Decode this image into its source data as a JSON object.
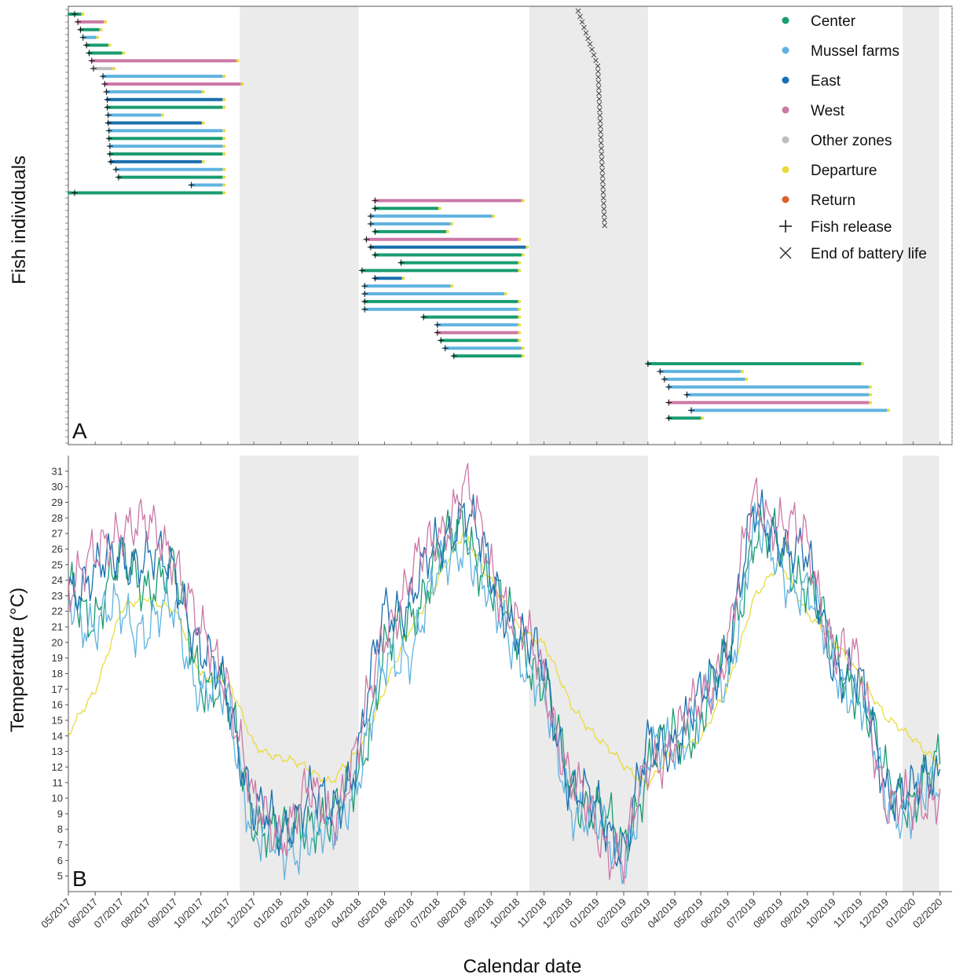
{
  "chart_data": [
    {
      "type": "scatter",
      "panel_label": "A",
      "ylabel": "Fish individuals",
      "x_range": [
        "2017-05-01",
        "2020-02-15"
      ],
      "shaded_periods": [
        [
          "2017-11-15",
          "2018-04-01"
        ],
        [
          "2018-10-15",
          "2019-03-01"
        ],
        [
          "2019-12-20",
          "2020-01-31"
        ]
      ],
      "legend": {
        "placement": "top-right",
        "entries": [
          {
            "label": "Center",
            "color": "#1a9c72",
            "marker": "dot"
          },
          {
            "label": "Mussel farms",
            "color": "#5fb3e0",
            "marker": "dot"
          },
          {
            "label": "East",
            "color": "#1a6fae",
            "marker": "dot"
          },
          {
            "label": "West",
            "color": "#cc79a7",
            "marker": "dot"
          },
          {
            "label": "Other zones",
            "color": "#bdbdbd",
            "marker": "dot"
          },
          {
            "label": "Departure",
            "color": "#e8dc3a",
            "marker": "dot"
          },
          {
            "label": "Return",
            "color": "#d9622b",
            "marker": "dot"
          },
          {
            "label": "Fish release",
            "color": "#111111",
            "marker": "plus"
          },
          {
            "label": "End of battery life",
            "color": "#333333",
            "marker": "cross"
          }
        ]
      },
      "tracks": [
        {
          "start": "2017-05-01",
          "end": "2017-05-15",
          "color": "#1a9c72"
        },
        {
          "start": "2017-05-12",
          "end": "2017-06-10",
          "color": "#cc79a7"
        },
        {
          "start": "2017-05-15",
          "end": "2017-06-05",
          "color": "#1a9c72"
        },
        {
          "start": "2017-05-18",
          "end": "2017-06-01",
          "color": "#5fb3e0"
        },
        {
          "start": "2017-05-22",
          "end": "2017-06-15",
          "color": "#1a9c72"
        },
        {
          "start": "2017-05-25",
          "end": "2017-07-01",
          "color": "#1a9c72"
        },
        {
          "start": "2017-05-28",
          "end": "2017-11-10",
          "color": "#cc79a7"
        },
        {
          "start": "2017-05-30",
          "end": "2017-06-20",
          "color": "#bdbdbd"
        },
        {
          "start": "2017-06-10",
          "end": "2017-10-25",
          "color": "#5fb3e0"
        },
        {
          "start": "2017-06-12",
          "end": "2017-11-15",
          "color": "#cc79a7"
        },
        {
          "start": "2017-06-14",
          "end": "2017-10-01",
          "color": "#5fb3e0"
        },
        {
          "start": "2017-06-15",
          "end": "2017-10-25",
          "color": "#1a6fae"
        },
        {
          "start": "2017-06-15",
          "end": "2017-10-25",
          "color": "#1a9c72"
        },
        {
          "start": "2017-06-16",
          "end": "2017-08-15",
          "color": "#5fb3e0"
        },
        {
          "start": "2017-06-16",
          "end": "2017-10-01",
          "color": "#1a6fae"
        },
        {
          "start": "2017-06-17",
          "end": "2017-10-25",
          "color": "#5fb3e0"
        },
        {
          "start": "2017-06-17",
          "end": "2017-10-25",
          "color": "#1a9c72"
        },
        {
          "start": "2017-06-18",
          "end": "2017-10-25",
          "color": "#5fb3e0"
        },
        {
          "start": "2017-06-18",
          "end": "2017-10-25",
          "color": "#1a9c72"
        },
        {
          "start": "2017-06-19",
          "end": "2017-10-01",
          "color": "#1a6fae"
        },
        {
          "start": "2017-06-25",
          "end": "2017-10-25",
          "color": "#5fb3e0"
        },
        {
          "start": "2017-06-28",
          "end": "2017-10-25",
          "color": "#1a9c72"
        },
        {
          "start": "2017-09-20",
          "end": "2017-10-25",
          "color": "#5fb3e0"
        },
        {
          "start": "2017-04-01",
          "end": "2017-10-25",
          "color": "#1a9c72"
        },
        {
          "start": "2018-04-20",
          "end": "2018-10-05",
          "color": "#cc79a7"
        },
        {
          "start": "2018-04-20",
          "end": "2018-07-01",
          "color": "#1a9c72"
        },
        {
          "start": "2018-04-15",
          "end": "2018-09-01",
          "color": "#5fb3e0"
        },
        {
          "start": "2018-04-15",
          "end": "2018-07-15",
          "color": "#5fb3e0"
        },
        {
          "start": "2018-04-20",
          "end": "2018-07-10",
          "color": "#1a9c72"
        },
        {
          "start": "2018-04-10",
          "end": "2018-10-01",
          "color": "#cc79a7"
        },
        {
          "start": "2018-04-15",
          "end": "2018-10-10",
          "color": "#1a6fae"
        },
        {
          "start": "2018-04-20",
          "end": "2018-10-05",
          "color": "#1a9c72"
        },
        {
          "start": "2018-05-20",
          "end": "2018-10-01",
          "color": "#1a9c72"
        },
        {
          "start": "2018-04-05",
          "end": "2018-10-01",
          "color": "#1a9c72"
        },
        {
          "start": "2018-04-20",
          "end": "2018-05-20",
          "color": "#1a6fae"
        },
        {
          "start": "2018-04-08",
          "end": "2018-07-15",
          "color": "#5fb3e0"
        },
        {
          "start": "2018-04-08",
          "end": "2018-09-15",
          "color": "#5fb3e0"
        },
        {
          "start": "2018-04-08",
          "end": "2018-10-01",
          "color": "#1a9c72"
        },
        {
          "start": "2018-04-08",
          "end": "2018-10-01",
          "color": "#5fb3e0"
        },
        {
          "start": "2018-06-15",
          "end": "2018-10-01",
          "color": "#1a9c72"
        },
        {
          "start": "2018-07-01",
          "end": "2018-10-01",
          "color": "#5fb3e0"
        },
        {
          "start": "2018-07-01",
          "end": "2018-10-01",
          "color": "#cc79a7"
        },
        {
          "start": "2018-07-05",
          "end": "2018-10-01",
          "color": "#1a9c72"
        },
        {
          "start": "2018-07-10",
          "end": "2018-10-05",
          "color": "#5fb3e0"
        },
        {
          "start": "2018-07-20",
          "end": "2018-10-05",
          "color": "#1a9c72"
        },
        {
          "start": "2019-03-01",
          "end": "2019-11-01",
          "color": "#1a9c72"
        },
        {
          "start": "2019-03-15",
          "end": "2019-06-15",
          "color": "#5fb3e0"
        },
        {
          "start": "2019-03-20",
          "end": "2019-06-20",
          "color": "#5fb3e0"
        },
        {
          "start": "2019-03-25",
          "end": "2019-11-10",
          "color": "#5fb3e0"
        },
        {
          "start": "2019-04-15",
          "end": "2019-11-10",
          "color": "#5fb3e0"
        },
        {
          "start": "2019-03-25",
          "end": "2019-11-10",
          "color": "#cc79a7"
        },
        {
          "start": "2019-04-20",
          "end": "2019-12-01",
          "color": "#5fb3e0"
        },
        {
          "start": "2019-03-25",
          "end": "2019-04-30",
          "color": "#1a9c72"
        }
      ]
    },
    {
      "type": "line",
      "panel_label": "B",
      "ylabel": "Temperature (°C)",
      "xlabel": "Calendar date",
      "ylim": [
        4,
        32
      ],
      "yticks": [
        5,
        6,
        7,
        8,
        9,
        10,
        11,
        12,
        13,
        14,
        15,
        16,
        17,
        18,
        19,
        20,
        21,
        22,
        23,
        24,
        25,
        26,
        27,
        28,
        29,
        30,
        31
      ],
      "x_range": [
        "2017-05-01",
        "2020-02-15"
      ],
      "xticks": [
        "05/2017",
        "06/2017",
        "07/2017",
        "08/2017",
        "09/2017",
        "10/2017",
        "11/2017",
        "12/2017",
        "01/2018",
        "02/2018",
        "03/2018",
        "04/2018",
        "05/2018",
        "06/2018",
        "07/2018",
        "08/2018",
        "09/2018",
        "10/2018",
        "11/2018",
        "12/2018",
        "01/2019",
        "02/2019",
        "03/2019",
        "04/2019",
        "05/2019",
        "06/2019",
        "07/2019",
        "08/2019",
        "09/2019",
        "10/2019",
        "11/2019",
        "12/2019",
        "01/2020",
        "02/2020"
      ],
      "shaded_periods": [
        [
          "2017-11-15",
          "2018-04-01"
        ],
        [
          "2018-10-15",
          "2019-03-01"
        ],
        [
          "2019-12-20",
          "2020-01-31"
        ]
      ],
      "series": [
        {
          "color": "#e8dc3a",
          "x": [
            "2017-05-01",
            "2017-06-01",
            "2017-07-01",
            "2017-08-01",
            "2017-09-01",
            "2017-10-01",
            "2017-11-01",
            "2017-12-01",
            "2018-01-01",
            "2018-02-01",
            "2018-03-01",
            "2018-04-01",
            "2018-05-01",
            "2018-06-01",
            "2018-07-01",
            "2018-08-01",
            "2018-09-01",
            "2018-10-01",
            "2018-11-01",
            "2018-12-01",
            "2019-01-01",
            "2019-02-01",
            "2019-03-01",
            "2019-04-01",
            "2019-05-01",
            "2019-06-01",
            "2019-07-01",
            "2019-08-01",
            "2019-09-01",
            "2019-10-01",
            "2019-11-01",
            "2019-12-01",
            "2020-01-01",
            "2020-02-01"
          ],
          "values": [
            14,
            17,
            22,
            23,
            22,
            18,
            17.5,
            13.5,
            12.5,
            12,
            11,
            13,
            17,
            21,
            24,
            27,
            24,
            21,
            20,
            16,
            14,
            12,
            11,
            13,
            14,
            17,
            23,
            25,
            22,
            20,
            18,
            15,
            14,
            12
          ]
        },
        {
          "color": "#1a9c72",
          "x": [
            "2017-05-01",
            "2017-06-01",
            "2017-07-01",
            "2017-08-01",
            "2017-09-01",
            "2017-10-01",
            "2017-11-01",
            "2017-12-01",
            "2018-01-01",
            "2018-02-01",
            "2018-03-01",
            "2018-04-01",
            "2018-05-01",
            "2018-06-01",
            "2018-07-01",
            "2018-08-01",
            "2018-09-01",
            "2018-10-01",
            "2018-11-01",
            "2018-12-01",
            "2019-01-01",
            "2019-02-01",
            "2019-03-01",
            "2019-04-01",
            "2019-05-01",
            "2019-06-01",
            "2019-07-01",
            "2019-08-01",
            "2019-09-01",
            "2019-10-01",
            "2019-11-01",
            "2019-12-01",
            "2020-01-01",
            "2020-02-01"
          ],
          "values": [
            23,
            22,
            25,
            24,
            24,
            18,
            16,
            9,
            7,
            9,
            8,
            12,
            19,
            22,
            25,
            28,
            23,
            21,
            17,
            11,
            9,
            7,
            12,
            14,
            15,
            19,
            27,
            26,
            24,
            19,
            17,
            11,
            10,
            12
          ]
        },
        {
          "color": "#5fb3e0",
          "x": [
            "2017-05-01",
            "2017-06-01",
            "2017-07-01",
            "2017-08-01",
            "2017-09-01",
            "2017-10-01",
            "2017-11-01",
            "2017-12-01",
            "2018-01-01",
            "2018-02-01",
            "2018-03-01",
            "2018-04-01",
            "2018-05-01",
            "2018-06-01",
            "2018-07-01",
            "2018-08-01",
            "2018-09-01",
            "2018-10-01",
            "2018-11-01",
            "2018-12-01",
            "2019-01-01",
            "2019-02-01",
            "2019-03-01",
            "2019-04-01",
            "2019-05-01",
            "2019-06-01",
            "2019-07-01",
            "2019-08-01",
            "2019-09-01",
            "2019-10-01",
            "2019-11-01",
            "2019-12-01",
            "2020-01-01",
            "2020-02-01"
          ],
          "values": [
            23,
            21,
            22,
            21,
            22,
            17,
            16,
            8,
            6,
            8,
            7,
            12,
            18,
            20,
            24,
            27,
            22,
            20,
            16,
            10,
            8,
            6,
            12,
            14,
            15,
            18,
            27,
            25,
            23,
            19,
            16,
            10,
            9,
            11
          ]
        },
        {
          "color": "#1a6fae",
          "x": [
            "2017-05-01",
            "2017-06-01",
            "2017-07-01",
            "2017-08-01",
            "2017-09-01",
            "2017-10-01",
            "2017-11-01",
            "2017-12-01",
            "2018-01-01",
            "2018-02-01",
            "2018-03-01",
            "2018-04-01",
            "2018-05-01",
            "2018-06-01",
            "2018-07-01",
            "2018-08-01",
            "2018-09-01",
            "2018-10-01",
            "2018-11-01",
            "2018-12-01",
            "2019-01-01",
            "2019-02-01",
            "2019-03-01",
            "2019-04-01",
            "2019-05-01",
            "2019-06-01",
            "2019-07-01",
            "2019-08-01",
            "2019-09-01",
            "2019-10-01",
            "2019-11-01",
            "2019-12-01",
            "2020-01-01",
            "2020-02-01"
          ],
          "values": [
            24,
            24,
            26,
            25,
            25,
            19,
            17,
            9,
            8,
            10,
            9,
            13,
            22,
            23,
            26,
            29,
            24,
            21,
            18,
            11,
            9,
            7,
            13,
            14,
            16,
            20,
            28,
            27,
            25,
            19,
            17,
            11,
            10,
            12
          ]
        },
        {
          "color": "#cc79a7",
          "x": [
            "2017-05-01",
            "2017-06-01",
            "2017-07-01",
            "2017-08-01",
            "2017-09-01",
            "2017-10-01",
            "2017-11-01",
            "2017-12-01",
            "2018-01-01",
            "2018-02-01",
            "2018-03-01",
            "2018-04-01",
            "2018-05-01",
            "2018-06-01",
            "2018-07-01",
            "2018-08-01",
            "2018-09-01",
            "2018-10-01",
            "2018-11-01",
            "2018-12-01",
            "2019-01-01",
            "2019-02-01",
            "2019-03-01",
            "2019-04-01",
            "2019-05-01",
            "2019-06-01",
            "2019-07-01",
            "2019-08-01",
            "2019-09-01",
            "2019-10-01",
            "2019-11-01",
            "2019-12-01",
            "2020-01-01",
            "2020-02-01"
          ],
          "values": [
            24,
            25,
            28,
            27,
            26,
            20,
            18,
            9,
            8,
            10,
            9,
            13,
            21,
            24,
            27,
            30,
            25,
            21,
            18,
            11,
            8,
            6,
            12,
            14,
            16,
            20,
            29,
            28,
            26,
            20,
            18,
            10,
            9,
            11
          ]
        }
      ]
    }
  ]
}
